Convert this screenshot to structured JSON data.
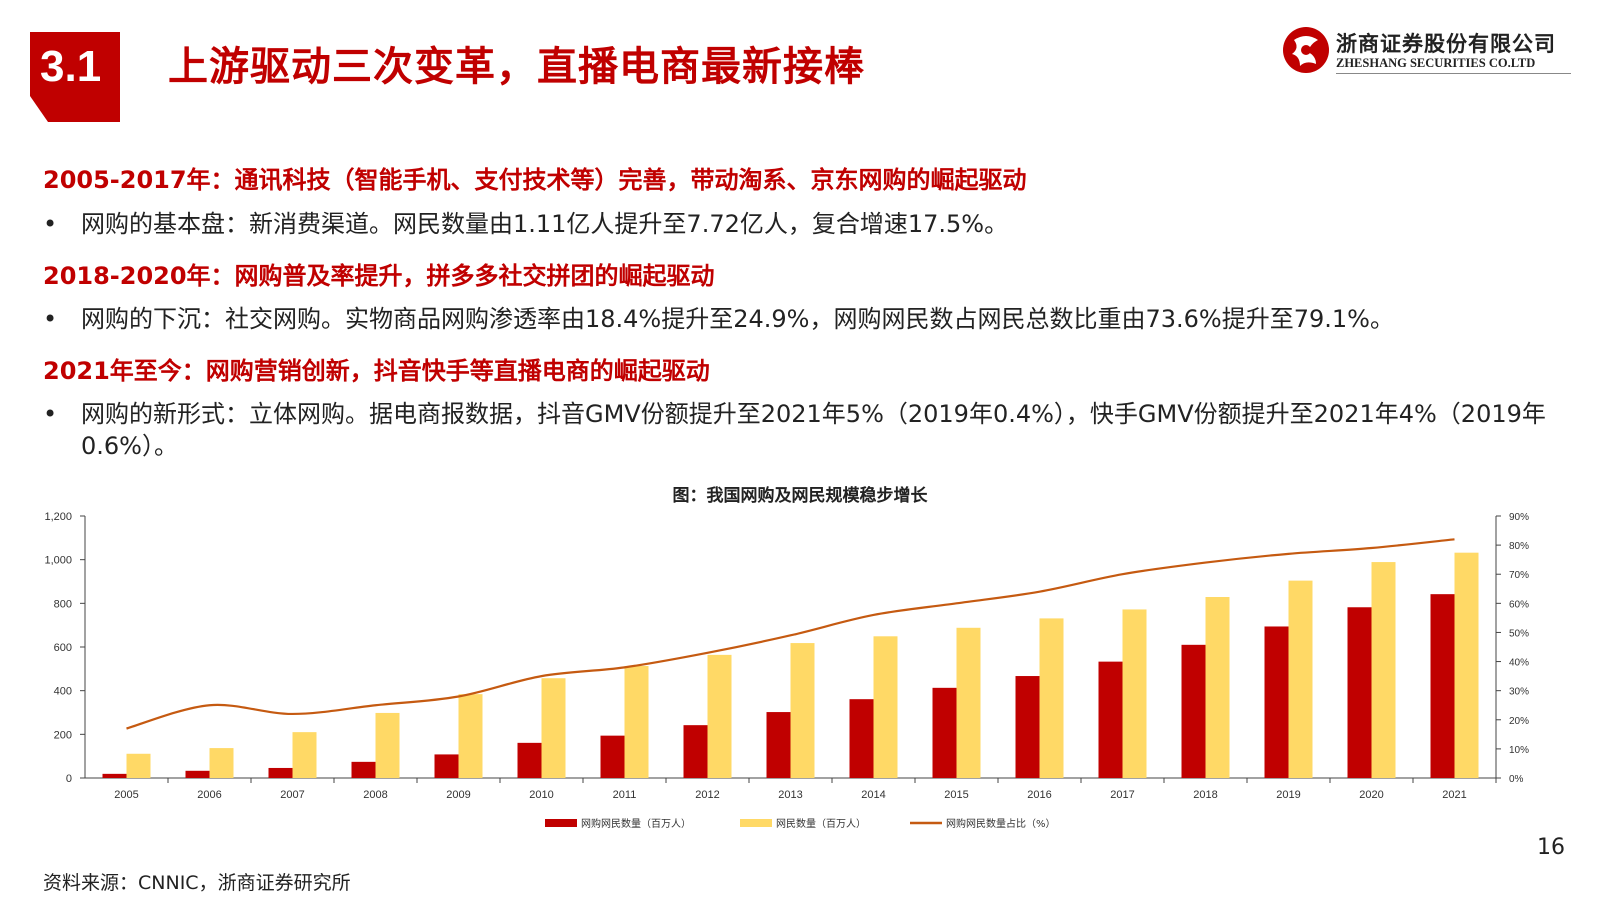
{
  "header": {
    "section_number": "3.1",
    "title": "上游驱动三次变革，直播电商最新接棒",
    "logo_cn": "浙商证券股份有限公司",
    "logo_en": "ZHESHANG SECURITIES CO.LTD",
    "brand_color": "#c00000"
  },
  "content": {
    "h1": "2005-2017年：通讯科技（智能手机、支付技术等）完善，带动淘系、京东网购的崛起驱动",
    "b1": "网购的基本盘：新消费渠道。网民数量由1.11亿人提升至7.72亿人，复合增速17.5%。",
    "h2": "2018-2020年：网购普及率提升，拼多多社交拼团的崛起驱动",
    "b2": "网购的下沉：社交网购。实物商品网购渗透率由18.4%提升至24.9%，网购网民数占网民总数比重由73.6%提升至79.1%。",
    "h3": "2021年至今：网购营销创新，抖音快手等直播电商的崛起驱动",
    "b3": "网购的新形式：立体网购。据电商报数据，抖音GMV份额提升至2021年5%（2019年0.4%），快手GMV份额提升至2021年4%（2019年0.6%）。",
    "bullet": "•"
  },
  "chart_title": "图：我国网购及网民规模稳步增长",
  "chart_data": {
    "type": "bar",
    "categories": [
      "2005",
      "2006",
      "2007",
      "2008",
      "2009",
      "2010",
      "2011",
      "2012",
      "2013",
      "2014",
      "2015",
      "2016",
      "2017",
      "2018",
      "2019",
      "2020",
      "2021"
    ],
    "series": [
      {
        "name": "网购网民数量（百万人）",
        "type": "bar",
        "axis": "left",
        "color": "#c00000",
        "values": [
          19,
          33,
          46,
          74,
          108,
          161,
          194,
          242,
          302,
          361,
          413,
          467,
          533,
          610,
          694,
          782,
          842
        ]
      },
      {
        "name": "网民数量（百万人）",
        "type": "bar",
        "axis": "left",
        "color": "#ffd966",
        "values": [
          111,
          137,
          210,
          298,
          384,
          457,
          513,
          564,
          618,
          649,
          688,
          731,
          772,
          829,
          904,
          989,
          1032
        ]
      },
      {
        "name": "网购网民数量占比（%）",
        "type": "line",
        "axis": "right",
        "color": "#c55a11",
        "values": [
          17,
          25,
          22,
          25,
          28,
          35,
          38,
          43,
          49,
          56,
          60,
          64,
          70,
          74,
          77,
          79,
          82
        ]
      }
    ],
    "y_left": {
      "min": 0,
      "max": 1200,
      "ticks": [
        "0",
        "200",
        "400",
        "600",
        "800",
        "1,000",
        "1,200"
      ]
    },
    "y_right": {
      "min": 0,
      "max": 90,
      "ticks": [
        "0%",
        "10%",
        "20%",
        "30%",
        "40%",
        "50%",
        "60%",
        "70%",
        "80%",
        "90%"
      ]
    },
    "legend_position": "bottom",
    "grid": false
  },
  "footer": {
    "source": "资料来源：CNNIC，浙商证券研究所",
    "page_number": "16"
  }
}
